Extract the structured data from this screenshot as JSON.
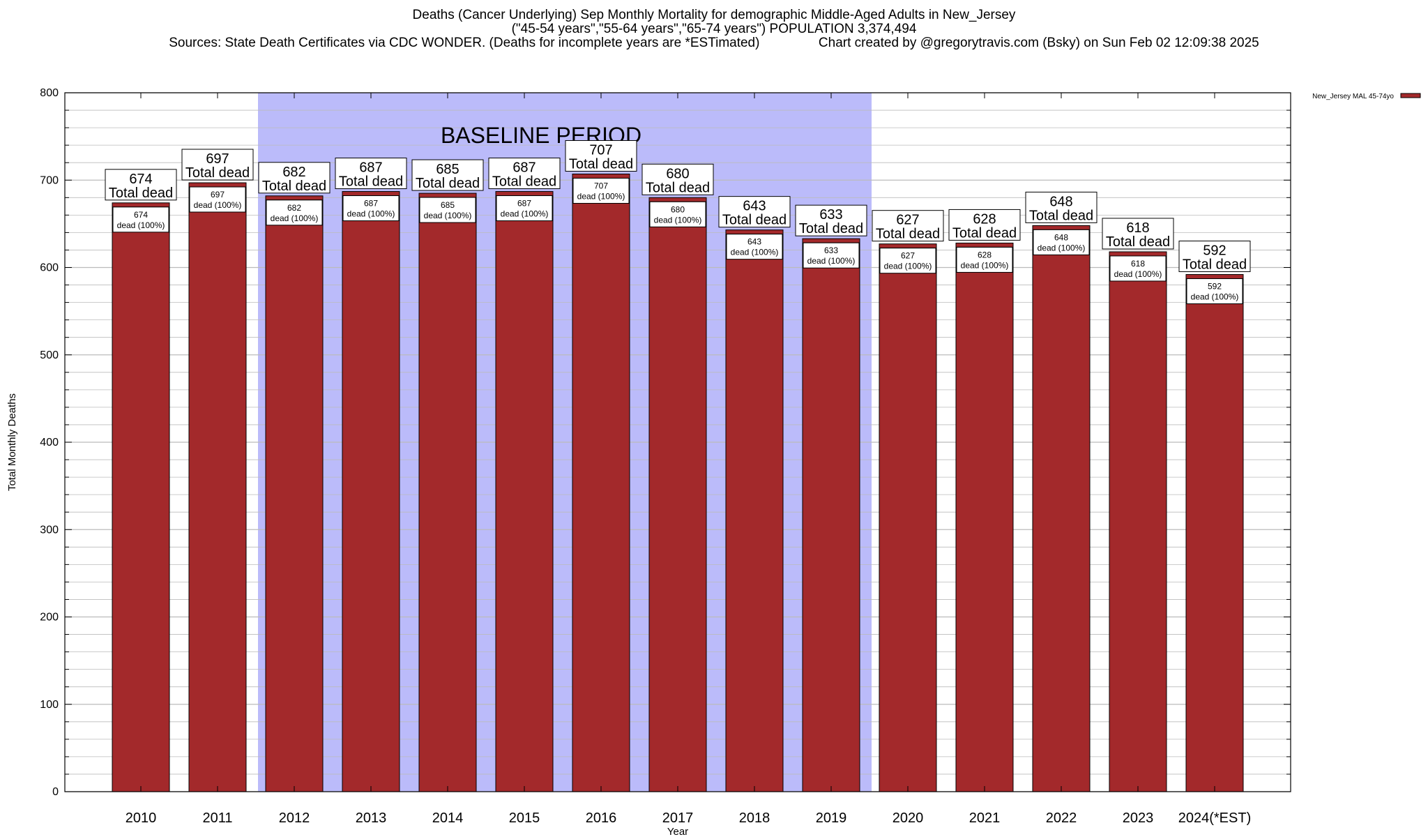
{
  "titles": {
    "line1": "Deaths (Cancer Underlying) Sep Monthly Mortality for demographic Middle-Aged Adults in New_Jersey",
    "line2": "(\"45-54 years\",\"55-64 years\",\"65-74 years\") POPULATION 3,374,494",
    "line3": "Sources: State Death Certificates via CDC WONDER. (Deaths for incomplete years are *ESTimated)                Chart created by @gregorytravis.com (Bsky) on Sun Feb 02 12:09:38 2025"
  },
  "colors": {
    "bar": "#a3292b",
    "baseline_shade": "#bbbbfa",
    "grid": "#bbbbbb"
  },
  "chart_data": {
    "type": "bar",
    "title": "Deaths (Cancer Underlying) Sep Monthly Mortality for demographic Middle-Aged Adults in New_Jersey",
    "xlabel": "Year",
    "ylabel": "Total Monthly Deaths",
    "ylim": [
      0,
      800
    ],
    "yticks": [
      0,
      100,
      200,
      300,
      400,
      500,
      600,
      700,
      800
    ],
    "grid": true,
    "legend_position": "top-right",
    "categories": [
      "2010",
      "2011",
      "2012",
      "2013",
      "2014",
      "2015",
      "2016",
      "2017",
      "2018",
      "2019",
      "2020",
      "2021",
      "2022",
      "2023",
      "2024(*EST)"
    ],
    "series": [
      {
        "name": "New_Jersey MAL 45-74yo",
        "values": [
          674,
          697,
          682,
          687,
          685,
          687,
          707,
          680,
          643,
          633,
          627,
          628,
          648,
          618,
          592
        ]
      }
    ],
    "total_label": "Total dead",
    "bar_label_suffix": "dead (100%)",
    "annotation": {
      "text": "BASELINE PERIOD",
      "from_category": "2012",
      "to_category": "2019"
    }
  }
}
